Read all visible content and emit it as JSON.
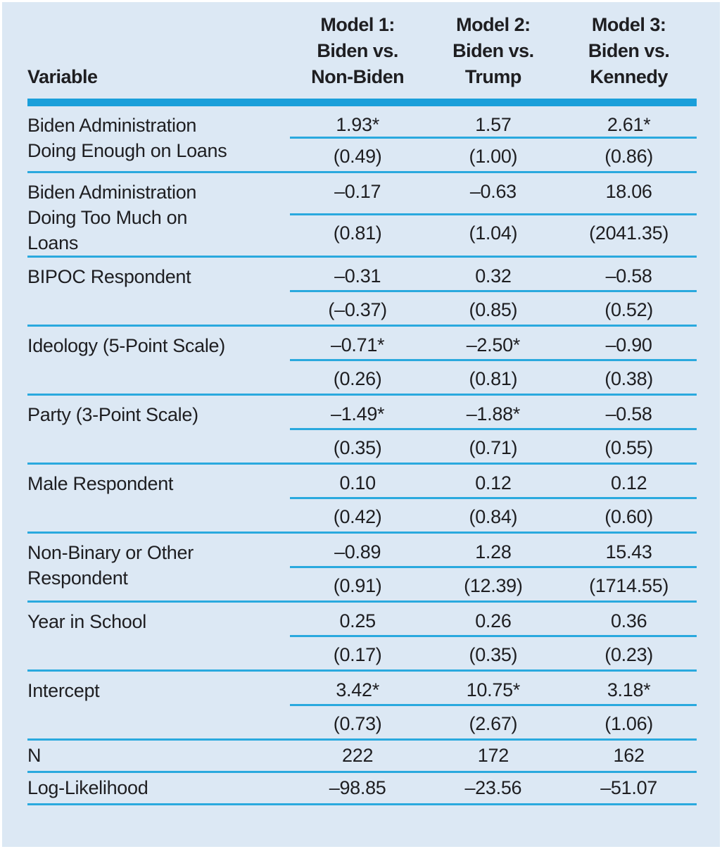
{
  "table": {
    "header": {
      "variable_label": "Variable",
      "models": [
        "Model 1:\nBiden vs.\nNon-Biden",
        "Model 2:\nBiden vs.\nTrump",
        "Model 3:\nBiden vs.\nKennedy"
      ]
    },
    "rows": [
      {
        "variable": "Biden Administration\nDoing Enough on Loans",
        "coef": [
          "1.93*",
          "1.57",
          "2.61*"
        ],
        "se": [
          "(0.49)",
          "(1.00)",
          "(0.86)"
        ]
      },
      {
        "variable": "Biden Administration\nDoing Too Much on\nLoans",
        "coef": [
          "–0.17",
          "–0.63",
          "18.06"
        ],
        "se": [
          "(0.81)",
          "(1.04)",
          "(2041.35)"
        ]
      },
      {
        "variable": "BIPOC Respondent",
        "coef": [
          "–0.31",
          "0.32",
          "–0.58"
        ],
        "se": [
          "(–0.37)",
          "(0.85)",
          "(0.52)"
        ]
      },
      {
        "variable": "Ideology (5-Point Scale)",
        "coef": [
          "–0.71*",
          "–2.50*",
          "–0.90"
        ],
        "se": [
          "(0.26)",
          "(0.81)",
          "(0.38)"
        ]
      },
      {
        "variable": "Party (3-Point Scale)",
        "coef": [
          "–1.49*",
          "–1.88*",
          "–0.58"
        ],
        "se": [
          "(0.35)",
          "(0.71)",
          "(0.55)"
        ]
      },
      {
        "variable": "Male Respondent",
        "coef": [
          "0.10",
          "0.12",
          "0.12"
        ],
        "se": [
          "(0.42)",
          "(0.84)",
          "(0.60)"
        ]
      },
      {
        "variable": "Non-Binary or Other\nRespondent",
        "coef": [
          "–0.89",
          "1.28",
          "15.43"
        ],
        "se": [
          "(0.91)",
          "(12.39)",
          "(1714.55)"
        ]
      },
      {
        "variable": "Year in School",
        "coef": [
          "0.25",
          "0.26",
          "0.36"
        ],
        "se": [
          "(0.17)",
          "(0.35)",
          "(0.23)"
        ]
      },
      {
        "variable": "Intercept",
        "coef": [
          "3.42*",
          "10.75*",
          "3.18*"
        ],
        "se": [
          "(0.73)",
          "(2.67)",
          "(1.06)"
        ]
      }
    ],
    "stats": [
      {
        "label": "N",
        "values": [
          "222",
          "172",
          "162"
        ]
      },
      {
        "label": "Log-Likelihood",
        "values": [
          "–98.85",
          "–23.56",
          "–51.07"
        ]
      }
    ],
    "colors": {
      "background": "#dce8f4",
      "header_rule": "#1a9fda",
      "row_rule": "#2aa9de",
      "text": "#1e1e21"
    }
  }
}
